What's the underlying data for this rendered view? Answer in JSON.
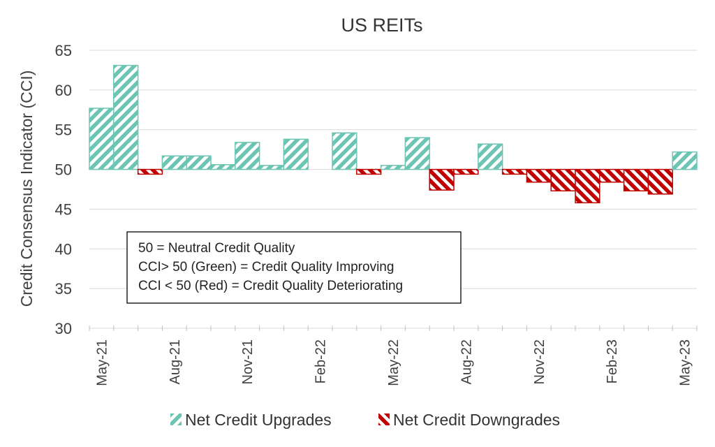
{
  "chart_data": {
    "type": "bar",
    "title": "US REITs",
    "ylabel": "Credit Consensus Indicator (CCI)",
    "xlabel": "",
    "baseline": 50,
    "ylim": [
      30,
      65
    ],
    "yticks": [
      30,
      35,
      40,
      45,
      50,
      55,
      60,
      65
    ],
    "grid": true,
    "categories": [
      "May-21",
      "Jun-21",
      "Jul-21",
      "Aug-21",
      "Sep-21",
      "Oct-21",
      "Nov-21",
      "Dec-21",
      "Jan-22",
      "Feb-22",
      "Mar-22",
      "Apr-22",
      "May-22",
      "Jun-22",
      "Jul-22",
      "Aug-22",
      "Sep-22",
      "Oct-22",
      "Nov-22",
      "Dec-22",
      "Jan-23",
      "Feb-23",
      "Mar-23",
      "Apr-23",
      "May-23"
    ],
    "x_tick_labels": [
      "May-21",
      "Aug-21",
      "Nov-21",
      "Feb-22",
      "May-22",
      "Aug-22",
      "Nov-22",
      "Feb-23",
      "May-23"
    ],
    "values": [
      57.7,
      63.1,
      49.4,
      51.7,
      51.7,
      50.6,
      53.4,
      50.5,
      53.8,
      null,
      54.6,
      49.4,
      50.5,
      54.0,
      47.4,
      49.4,
      53.2,
      49.4,
      48.4,
      47.3,
      45.8,
      48.4,
      47.3,
      46.9,
      52.2
    ],
    "series": [
      {
        "name": "Net Credit Upgrades",
        "color": "#6cc5b3",
        "rule": "value > 50"
      },
      {
        "name": "Net Credit Downgrades",
        "color": "#c00000",
        "rule": "value < 50"
      }
    ],
    "legend_position": "bottom",
    "annotation": {
      "lines": [
        "50 = Neutral Credit Quality",
        "CCI> 50 (Green) = Credit Quality Improving",
        "CCI < 50 (Red) = Credit Quality Deteriorating"
      ]
    }
  }
}
